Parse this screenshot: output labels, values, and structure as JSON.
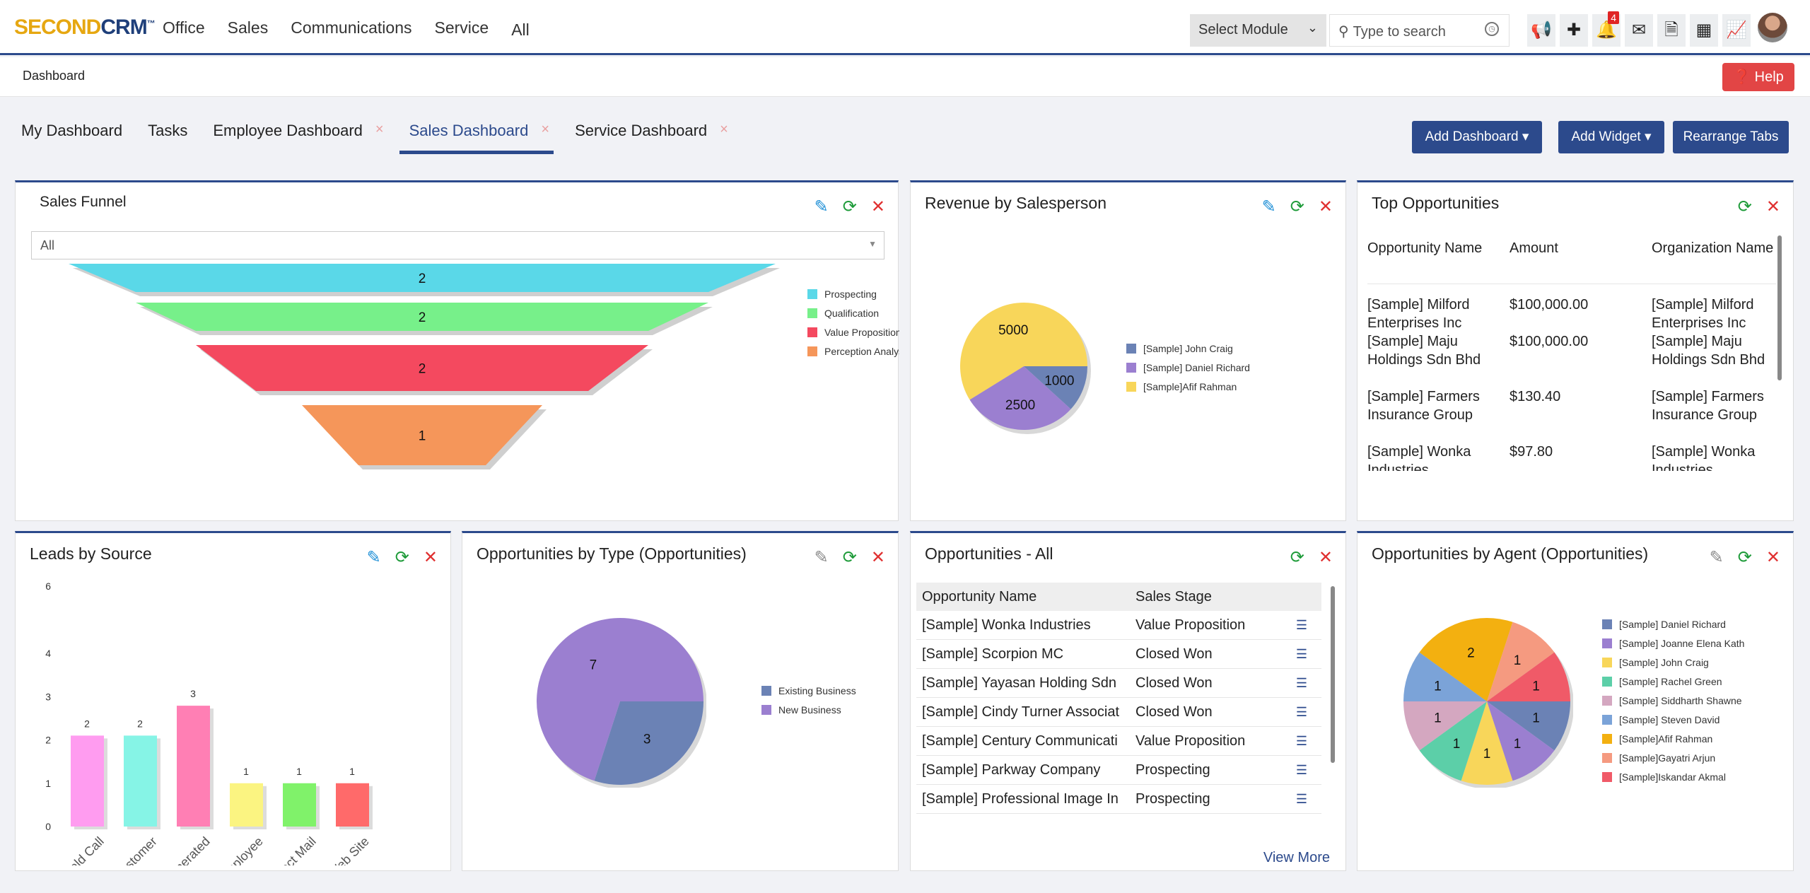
{
  "brand": {
    "part1": "SECOND",
    "part2": "CRM",
    "tm": "™"
  },
  "nav": [
    "Office",
    "Sales",
    "Communications",
    "Service",
    "All"
  ],
  "module_select": "Select Module",
  "search_placeholder": "Type to search",
  "notification_count": "4",
  "breadcrumb": "Dashboard",
  "help": "Help",
  "tabs": [
    {
      "label": "My Dashboard"
    },
    {
      "label": "Tasks"
    },
    {
      "label": "Employee Dashboard"
    },
    {
      "label": "Sales Dashboard"
    },
    {
      "label": "Service Dashboard"
    }
  ],
  "buttons": {
    "add_dashboard": "Add Dashboard",
    "add_widget": "Add Widget",
    "rearrange": "Rearrange Tabs"
  },
  "widgets": {
    "funnel": {
      "title": "Sales Funnel",
      "filter": "All"
    },
    "revenue": {
      "title": "Revenue by Salesperson"
    },
    "top": {
      "title": "Top Opportunities",
      "headers": [
        "Opportunity Name",
        "Amount",
        "Organization Name"
      ],
      "rows": [
        [
          "[Sample] Milford Enterprises Inc",
          "$100,000.00",
          "[Sample] Milford Enterprises Inc"
        ],
        [
          "[Sample] Maju Holdings Sdn Bhd",
          "$100,000.00",
          "[Sample] Maju Holdings Sdn Bhd"
        ],
        [
          "[Sample] Farmers Insurance Group",
          "$130.40",
          "[Sample] Farmers Insurance Group"
        ],
        [
          "[Sample] Wonka Industries",
          "$97.80",
          "[Sample] Wonka Industries"
        ]
      ]
    },
    "leads": {
      "title": "Leads by Source"
    },
    "opptype": {
      "title": "Opportunities by Type (Opportunities)"
    },
    "oppall": {
      "title": "Opportunities - All",
      "headers": [
        "Opportunity Name",
        "Sales Stage"
      ],
      "rows": [
        [
          "[Sample] Wonka Industries",
          "Value Proposition"
        ],
        [
          "[Sample] Scorpion MC",
          "Closed Won"
        ],
        [
          "[Sample] Yayasan Holding Sdn",
          "Closed Won"
        ],
        [
          "[Sample] Cindy Turner Associat",
          "Closed Won"
        ],
        [
          "[Sample] Century Communicati",
          "Value Proposition"
        ],
        [
          "[Sample] Parkway Company",
          "Prospecting"
        ],
        [
          "[Sample] Professional Image In",
          "Prospecting"
        ]
      ],
      "view_more": "View More"
    },
    "agent": {
      "title": "Opportunities by Agent (Opportunities)"
    }
  },
  "chart_data": [
    {
      "type": "funnel",
      "categories": [
        "Prospecting",
        "Qualification",
        "Value Proposition",
        "Perception Analysis"
      ],
      "values": [
        2,
        2,
        2,
        1
      ],
      "colors": [
        "#5ad8e8",
        "#77f08a",
        "#f4495f",
        "#f5965a"
      ]
    },
    {
      "type": "pie",
      "categories": [
        "[Sample] John Craig",
        "[Sample] Daniel Richard",
        "[Sample]Afif Rahman"
      ],
      "values": [
        1000,
        2500,
        5000
      ],
      "colors": [
        "#6b82b5",
        "#9b7fd0",
        "#f8d65a"
      ]
    },
    {
      "type": "bar",
      "categories": [
        "Cold Call",
        "Existing Customer",
        "Self Generated",
        "Employee",
        "Direct Mail",
        "Web Site"
      ],
      "values": [
        2,
        2,
        3,
        1,
        1,
        1
      ],
      "colors": [
        "#ff9cf0",
        "#86f4e6",
        "#ff7fb4",
        "#fbf481",
        "#80f26a",
        "#ff6a6a"
      ],
      "yticks": [
        0,
        1,
        2,
        3,
        4,
        6
      ]
    },
    {
      "type": "pie",
      "categories": [
        "Existing Business",
        "New Business"
      ],
      "values": [
        3,
        7
      ],
      "colors": [
        "#6b82b5",
        "#9b7fd0"
      ]
    },
    {
      "type": "pie",
      "categories": [
        "[Sample] Daniel Richard",
        "[Sample] Joanne Elena Kath",
        "[Sample] John Craig",
        "[Sample] Rachel Green",
        "[Sample] Siddharth Shawne",
        "[Sample] Steven David",
        "[Sample]Afif Rahman",
        "[Sample]Gayatri Arjun",
        "[Sample]Iskandar Akmal"
      ],
      "values": [
        1,
        1,
        1,
        1,
        1,
        1,
        2,
        1,
        1
      ],
      "colors": [
        "#6b82b5",
        "#9b7fd0",
        "#f8d65a",
        "#5ccfa8",
        "#d4a7c0",
        "#7ba3d8",
        "#f3b010",
        "#f59a80",
        "#f05a68"
      ]
    }
  ]
}
